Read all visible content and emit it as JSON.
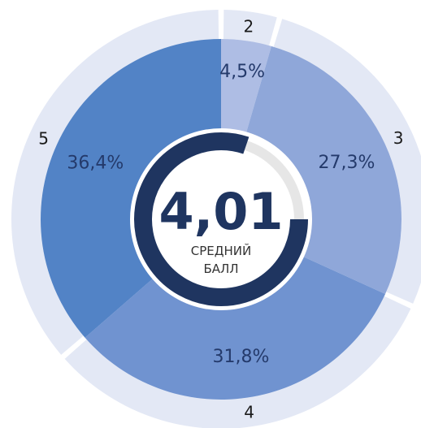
{
  "chart_data": {
    "type": "pie",
    "title": "",
    "center": {
      "value": "4,01",
      "caption_line1": "СРЕДНИЙ",
      "caption_line2": "БАЛЛ",
      "gauge_fraction": 0.802
    },
    "slices": [
      {
        "grade": "2",
        "value": 4.5,
        "label": "4,5%",
        "color": "#aebde4"
      },
      {
        "grade": "3",
        "value": 27.3,
        "label": "27,3%",
        "color": "#8fa7d9"
      },
      {
        "grade": "4",
        "value": 31.8,
        "label": "31,8%",
        "color": "#7093d0"
      },
      {
        "grade": "5",
        "value": 36.4,
        "label": "36,4%",
        "color": "#5283c6"
      }
    ],
    "colors": {
      "outer_ring": "#e3e8f5",
      "gauge_track": "#e6e6e6",
      "gauge_fill": "#1f3560",
      "center_bg": "#ffffff"
    }
  }
}
